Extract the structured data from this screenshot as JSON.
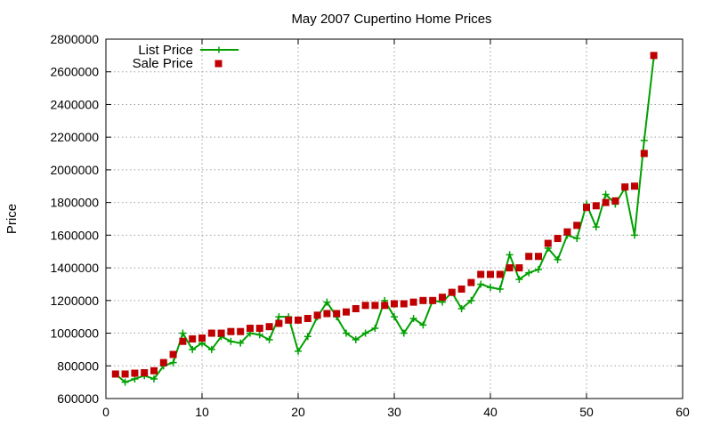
{
  "chart_data": {
    "type": "line",
    "title": "May 2007 Cupertino Home Prices",
    "xlabel": "",
    "ylabel": "Price",
    "xlim": [
      0,
      60
    ],
    "ylim": [
      600000,
      2800000
    ],
    "x_ticks": [
      0,
      10,
      20,
      30,
      40,
      50,
      60
    ],
    "y_ticks": [
      600000,
      800000,
      1000000,
      1200000,
      1400000,
      1600000,
      1800000,
      2000000,
      2200000,
      2400000,
      2600000,
      2800000
    ],
    "grid": true,
    "legend_position": "top-left",
    "series": [
      {
        "name": "List Price",
        "style": "line+cross",
        "color": "#00a000",
        "x": [
          1,
          2,
          3,
          4,
          5,
          6,
          7,
          8,
          9,
          10,
          11,
          12,
          13,
          14,
          15,
          16,
          17,
          18,
          19,
          20,
          21,
          22,
          23,
          24,
          25,
          26,
          27,
          28,
          29,
          30,
          31,
          32,
          33,
          34,
          35,
          36,
          37,
          38,
          39,
          40,
          41,
          42,
          43,
          44,
          45,
          46,
          47,
          48,
          49,
          50,
          51,
          52,
          53,
          54,
          55,
          56,
          57
        ],
        "values": [
          750000,
          700000,
          720000,
          740000,
          720000,
          800000,
          820000,
          1000000,
          900000,
          940000,
          900000,
          980000,
          950000,
          940000,
          1000000,
          990000,
          960000,
          1100000,
          1100000,
          890000,
          980000,
          1100000,
          1190000,
          1100000,
          1000000,
          960000,
          1000000,
          1030000,
          1200000,
          1100000,
          1000000,
          1090000,
          1050000,
          1200000,
          1190000,
          1250000,
          1150000,
          1200000,
          1300000,
          1280000,
          1270000,
          1480000,
          1330000,
          1370000,
          1390000,
          1520000,
          1450000,
          1600000,
          1580000,
          1790000,
          1650000,
          1850000,
          1790000,
          1890000,
          1600000,
          2180000,
          2690000
        ]
      },
      {
        "name": "Sale Price",
        "style": "square",
        "color": "#c00000",
        "x": [
          1,
          2,
          3,
          4,
          5,
          6,
          7,
          8,
          9,
          10,
          11,
          12,
          13,
          14,
          15,
          16,
          17,
          18,
          19,
          20,
          21,
          22,
          23,
          24,
          25,
          26,
          27,
          28,
          29,
          30,
          31,
          32,
          33,
          34,
          35,
          36,
          37,
          38,
          39,
          40,
          41,
          42,
          43,
          44,
          45,
          46,
          47,
          48,
          49,
          50,
          51,
          52,
          53,
          54,
          55,
          56,
          57
        ],
        "values": [
          750000,
          750000,
          755000,
          758000,
          770000,
          820000,
          870000,
          950000,
          965000,
          970000,
          1000000,
          1000000,
          1010000,
          1010000,
          1030000,
          1030000,
          1040000,
          1060000,
          1080000,
          1080000,
          1090000,
          1110000,
          1120000,
          1120000,
          1130000,
          1150000,
          1170000,
          1170000,
          1170000,
          1180000,
          1180000,
          1190000,
          1200000,
          1200000,
          1220000,
          1250000,
          1270000,
          1310000,
          1360000,
          1360000,
          1360000,
          1400000,
          1400000,
          1470000,
          1470000,
          1550000,
          1580000,
          1620000,
          1660000,
          1770000,
          1780000,
          1800000,
          1810000,
          1895000,
          1900000,
          2100000,
          2700000
        ]
      }
    ]
  }
}
